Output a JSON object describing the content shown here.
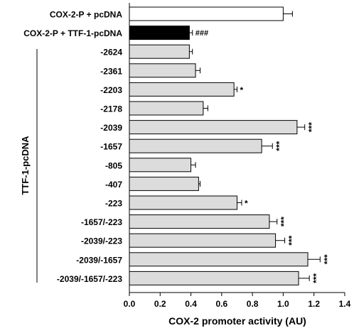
{
  "chart_data": {
    "type": "bar",
    "orientation": "horizontal",
    "categories": [
      "COX-2-P + pcDNA",
      "COX-2-P + TTF-1-pcDNA",
      "-2624",
      "-2361",
      "-2203",
      "-2178",
      "-2039",
      "-1657",
      "-805",
      "-407",
      "-223",
      "-1657/-223",
      "-2039/-223",
      "-2039/-1657",
      "-2039/-1657/-223"
    ],
    "values": [
      1.0,
      0.39,
      0.39,
      0.43,
      0.68,
      0.48,
      1.09,
      0.86,
      0.4,
      0.45,
      0.7,
      0.91,
      0.95,
      1.16,
      1.1
    ],
    "errors": [
      0.06,
      0.02,
      0.02,
      0.03,
      0.02,
      0.03,
      0.05,
      0.07,
      0.03,
      0.01,
      0.03,
      0.05,
      0.06,
      0.08,
      0.07
    ],
    "fills": [
      "#ffffff",
      "#000000",
      "#dcdcdc",
      "#dcdcdc",
      "#dcdcdc",
      "#dcdcdc",
      "#dcdcdc",
      "#dcdcdc",
      "#dcdcdc",
      "#dcdcdc",
      "#dcdcdc",
      "#dcdcdc",
      "#dcdcdc",
      "#dcdcdc",
      "#dcdcdc"
    ],
    "significance": [
      "",
      "###",
      "",
      "",
      "*",
      "",
      "***",
      "***",
      "",
      "",
      "*",
      "***",
      "***",
      "***",
      "***"
    ],
    "xlabel": "COX-2 promoter activity (AU)",
    "group_label": "TTF-1-pcDNA",
    "xlim": [
      0,
      1.4
    ],
    "xticks": [
      "0.0",
      "0.2",
      "0.4",
      "0.6",
      "0.8",
      "1.0",
      "1.2",
      "1.4"
    ],
    "grid": false
  }
}
